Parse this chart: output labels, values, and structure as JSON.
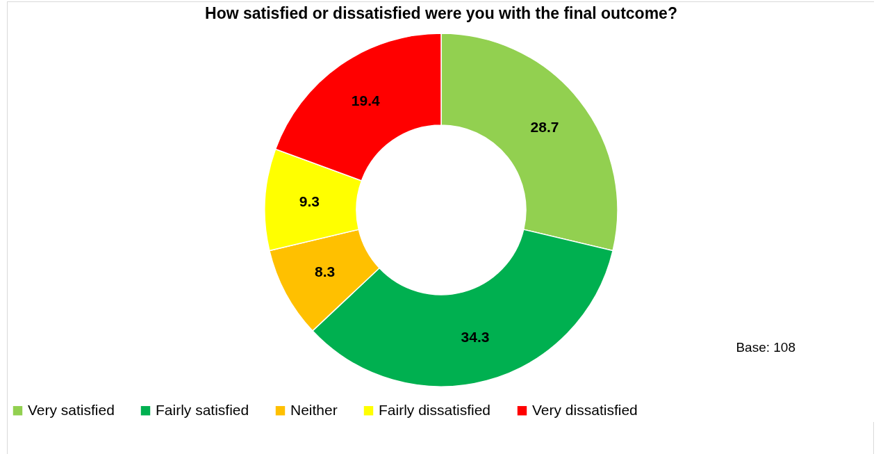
{
  "chart_data": {
    "type": "donut",
    "title": "How satisfied or dissatisfied were you with the final outcome?",
    "categories": [
      "Very satisfied",
      "Fairly satisfied",
      "Neither",
      "Fairly dissatisfied",
      "Very dissatisfied"
    ],
    "values": [
      28.7,
      34.3,
      8.3,
      9.3,
      19.4
    ],
    "colors": [
      "#92d050",
      "#00b050",
      "#ffc000",
      "#ffff00",
      "#ff0000"
    ],
    "data_labels": true,
    "legend": "bottom",
    "annotations": [
      "Base: 108"
    ]
  }
}
